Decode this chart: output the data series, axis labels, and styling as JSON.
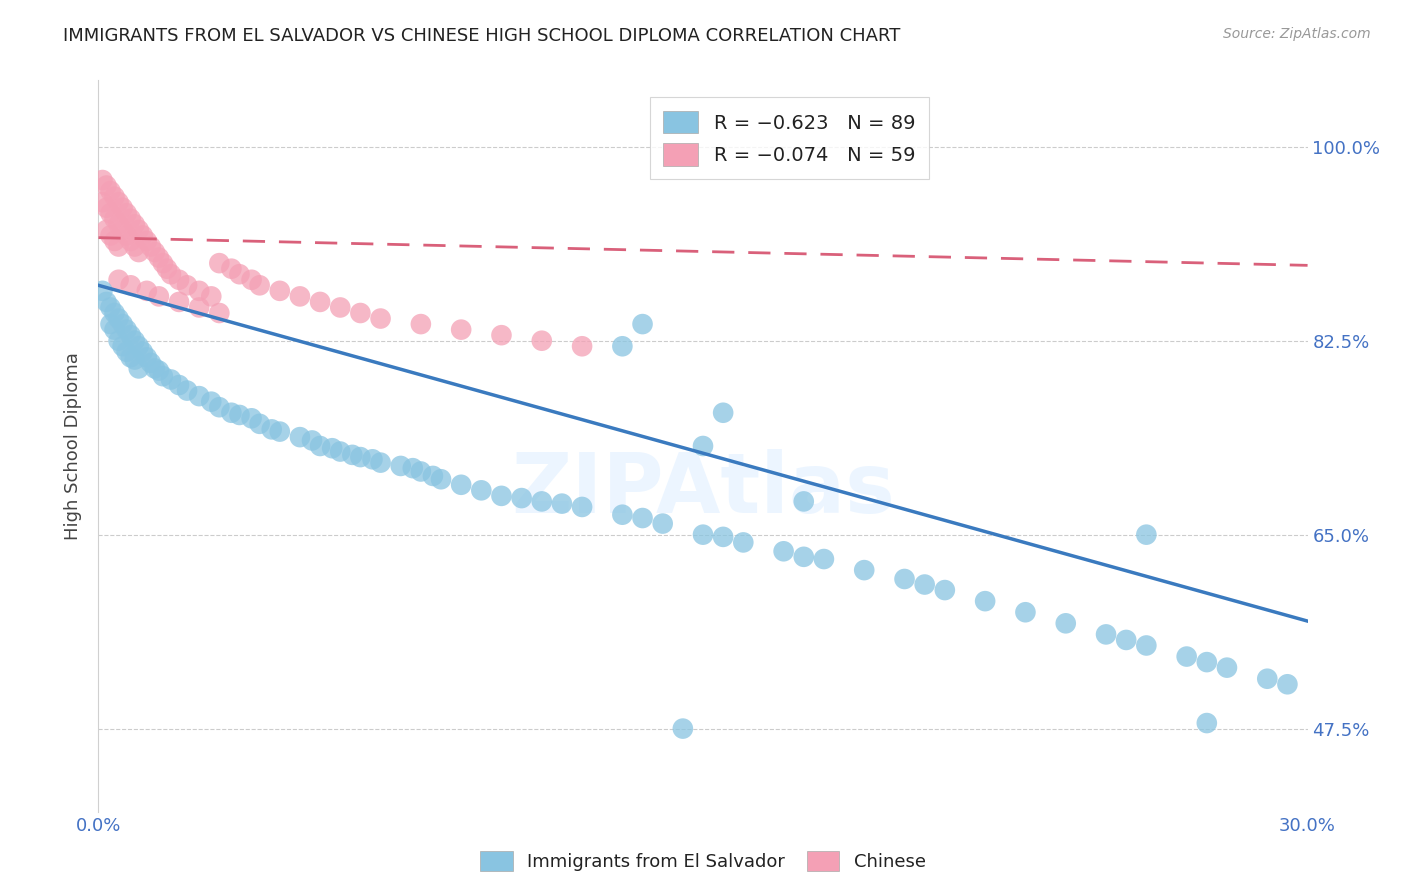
{
  "title": "IMMIGRANTS FROM EL SALVADOR VS CHINESE HIGH SCHOOL DIPLOMA CORRELATION CHART",
  "source": "Source: ZipAtlas.com",
  "ylabel": "High School Diploma",
  "yticks": [
    0.475,
    0.65,
    0.825,
    1.0
  ],
  "ytick_labels": [
    "47.5%",
    "65.0%",
    "82.5%",
    "100.0%"
  ],
  "xmin": 0.0,
  "xmax": 0.3,
  "ymin": 0.4,
  "ymax": 1.06,
  "blue_color": "#89c4e1",
  "pink_color": "#f4a0b5",
  "blue_line_color": "#3a7abf",
  "pink_line_color": "#d9607a",
  "watermark": "ZIPAtlas",
  "blue_R": -0.623,
  "blue_N": 89,
  "pink_R": -0.074,
  "pink_N": 59,
  "blue_line_x0": 0.0,
  "blue_line_y0": 0.875,
  "blue_line_x1": 0.3,
  "blue_line_y1": 0.572,
  "pink_line_x0": 0.0,
  "pink_line_y0": 0.918,
  "pink_line_x1": 0.3,
  "pink_line_y1": 0.893,
  "blue_pts_x": [
    0.001,
    0.002,
    0.003,
    0.003,
    0.004,
    0.004,
    0.005,
    0.005,
    0.006,
    0.006,
    0.007,
    0.007,
    0.008,
    0.008,
    0.009,
    0.009,
    0.01,
    0.01,
    0.011,
    0.012,
    0.013,
    0.014,
    0.015,
    0.016,
    0.018,
    0.02,
    0.022,
    0.025,
    0.028,
    0.03,
    0.033,
    0.035,
    0.038,
    0.04,
    0.043,
    0.045,
    0.05,
    0.053,
    0.055,
    0.058,
    0.06,
    0.063,
    0.065,
    0.068,
    0.07,
    0.075,
    0.078,
    0.08,
    0.083,
    0.085,
    0.09,
    0.095,
    0.1,
    0.105,
    0.11,
    0.115,
    0.12,
    0.13,
    0.135,
    0.14,
    0.15,
    0.155,
    0.16,
    0.17,
    0.175,
    0.18,
    0.19,
    0.2,
    0.205,
    0.21,
    0.22,
    0.23,
    0.24,
    0.25,
    0.255,
    0.26,
    0.27,
    0.275,
    0.28,
    0.29,
    0.295,
    0.15,
    0.175,
    0.13,
    0.155,
    0.135,
    0.26,
    0.275,
    0.145
  ],
  "blue_pts_y": [
    0.87,
    0.86,
    0.855,
    0.84,
    0.85,
    0.835,
    0.845,
    0.825,
    0.84,
    0.82,
    0.835,
    0.815,
    0.83,
    0.81,
    0.825,
    0.808,
    0.82,
    0.8,
    0.815,
    0.81,
    0.805,
    0.8,
    0.798,
    0.793,
    0.79,
    0.785,
    0.78,
    0.775,
    0.77,
    0.765,
    0.76,
    0.758,
    0.755,
    0.75,
    0.745,
    0.743,
    0.738,
    0.735,
    0.73,
    0.728,
    0.725,
    0.722,
    0.72,
    0.718,
    0.715,
    0.712,
    0.71,
    0.707,
    0.703,
    0.7,
    0.695,
    0.69,
    0.685,
    0.683,
    0.68,
    0.678,
    0.675,
    0.668,
    0.665,
    0.66,
    0.65,
    0.648,
    0.643,
    0.635,
    0.63,
    0.628,
    0.618,
    0.61,
    0.605,
    0.6,
    0.59,
    0.58,
    0.57,
    0.56,
    0.555,
    0.55,
    0.54,
    0.535,
    0.53,
    0.52,
    0.515,
    0.73,
    0.68,
    0.82,
    0.76,
    0.84,
    0.65,
    0.48,
    0.475
  ],
  "pink_pts_x": [
    0.001,
    0.001,
    0.002,
    0.002,
    0.002,
    0.003,
    0.003,
    0.003,
    0.004,
    0.004,
    0.004,
    0.005,
    0.005,
    0.005,
    0.006,
    0.006,
    0.007,
    0.007,
    0.008,
    0.008,
    0.009,
    0.009,
    0.01,
    0.01,
    0.011,
    0.012,
    0.013,
    0.014,
    0.015,
    0.016,
    0.017,
    0.018,
    0.02,
    0.022,
    0.025,
    0.028,
    0.03,
    0.033,
    0.035,
    0.038,
    0.04,
    0.045,
    0.05,
    0.055,
    0.06,
    0.065,
    0.07,
    0.08,
    0.09,
    0.1,
    0.11,
    0.12,
    0.03,
    0.025,
    0.02,
    0.015,
    0.012,
    0.008,
    0.005
  ],
  "pink_pts_y": [
    0.97,
    0.95,
    0.965,
    0.945,
    0.925,
    0.96,
    0.94,
    0.92,
    0.955,
    0.935,
    0.915,
    0.95,
    0.93,
    0.91,
    0.945,
    0.925,
    0.94,
    0.92,
    0.935,
    0.915,
    0.93,
    0.91,
    0.925,
    0.905,
    0.92,
    0.915,
    0.91,
    0.905,
    0.9,
    0.895,
    0.89,
    0.885,
    0.88,
    0.875,
    0.87,
    0.865,
    0.895,
    0.89,
    0.885,
    0.88,
    0.875,
    0.87,
    0.865,
    0.86,
    0.855,
    0.85,
    0.845,
    0.84,
    0.835,
    0.83,
    0.825,
    0.82,
    0.85,
    0.855,
    0.86,
    0.865,
    0.87,
    0.875,
    0.88
  ]
}
